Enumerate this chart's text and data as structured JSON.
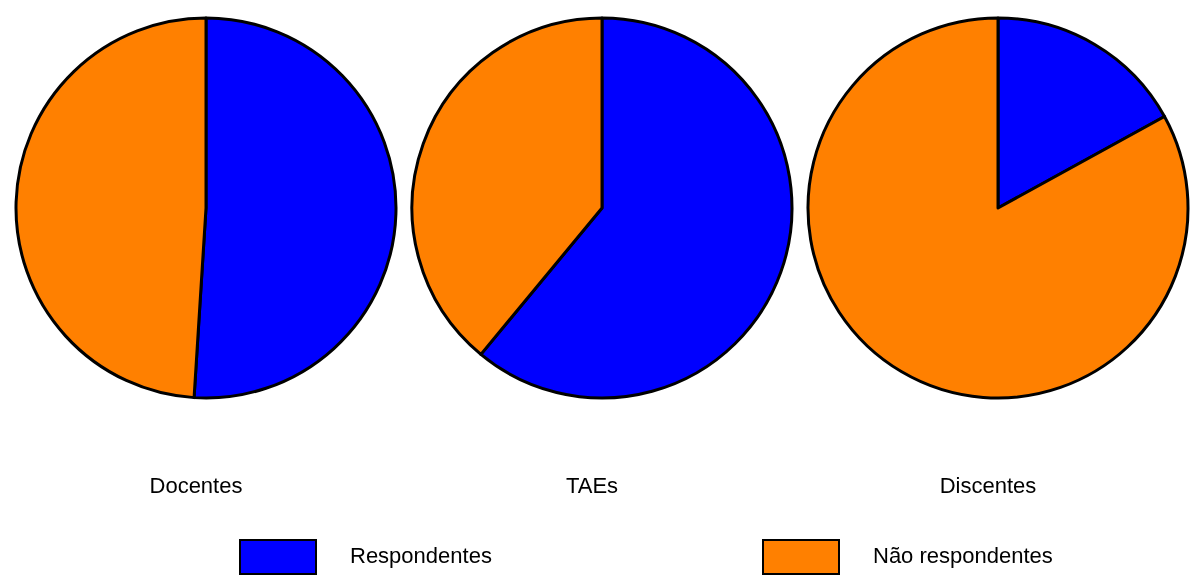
{
  "chart_data": [
    {
      "type": "pie",
      "title": "Docentes",
      "categories": [
        "Respondentes",
        "Não respondentes"
      ],
      "values": [
        51,
        49
      ],
      "colors": [
        "#0000ff",
        "#ff8000"
      ],
      "legend": "bottom"
    },
    {
      "type": "pie",
      "title": "TAEs",
      "categories": [
        null,
        null
      ],
      "values": [
        61,
        39
      ],
      "colors": [
        "#0000ff",
        "#ff8000"
      ]
    },
    {
      "type": "pie",
      "title": "Discentes",
      "categories": [
        null,
        null
      ],
      "values": [
        17,
        83
      ],
      "colors": [
        "#0000ff",
        "#ff8000"
      ]
    }
  ]
}
